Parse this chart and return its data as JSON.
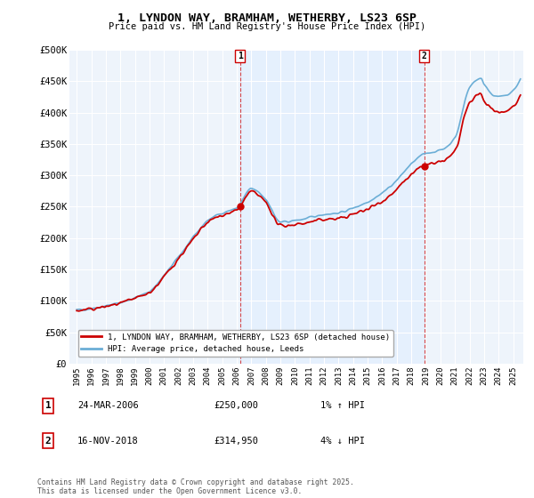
{
  "title": "1, LYNDON WAY, BRAMHAM, WETHERBY, LS23 6SP",
  "subtitle": "Price paid vs. HM Land Registry's House Price Index (HPI)",
  "ylim": [
    0,
    500000
  ],
  "yticks": [
    0,
    50000,
    100000,
    150000,
    200000,
    250000,
    300000,
    350000,
    400000,
    450000,
    500000
  ],
  "ytick_labels": [
    "£0",
    "£50K",
    "£100K",
    "£150K",
    "£200K",
    "£250K",
    "£300K",
    "£350K",
    "£400K",
    "£450K",
    "£500K"
  ],
  "background_color": "#ffffff",
  "plot_bg_color": "#eef4fb",
  "grid_color": "#ffffff",
  "hpi_color": "#6baed6",
  "hpi_fill_color": "#c6dcf0",
  "price_color": "#cc0000",
  "sale1_x": 2006.23,
  "sale1_y": 250000,
  "sale2_x": 2018.88,
  "sale2_y": 314950,
  "sale1_date": "24-MAR-2006",
  "sale1_price": "£250,000",
  "sale1_hpi": "1% ↑ HPI",
  "sale2_date": "16-NOV-2018",
  "sale2_price": "£314,950",
  "sale2_hpi": "4% ↓ HPI",
  "legend_line1": "1, LYNDON WAY, BRAMHAM, WETHERBY, LS23 6SP (detached house)",
  "legend_line2": "HPI: Average price, detached house, Leeds",
  "footnote": "Contains HM Land Registry data © Crown copyright and database right 2025.\nThis data is licensed under the Open Government Licence v3.0.",
  "xlim": [
    1994.5,
    2025.7
  ],
  "xtick_years": [
    1995,
    1996,
    1997,
    1998,
    1999,
    2000,
    2001,
    2002,
    2003,
    2004,
    2005,
    2006,
    2007,
    2008,
    2009,
    2010,
    2011,
    2012,
    2013,
    2014,
    2015,
    2016,
    2017,
    2018,
    2019,
    2020,
    2021,
    2022,
    2023,
    2024,
    2025
  ]
}
